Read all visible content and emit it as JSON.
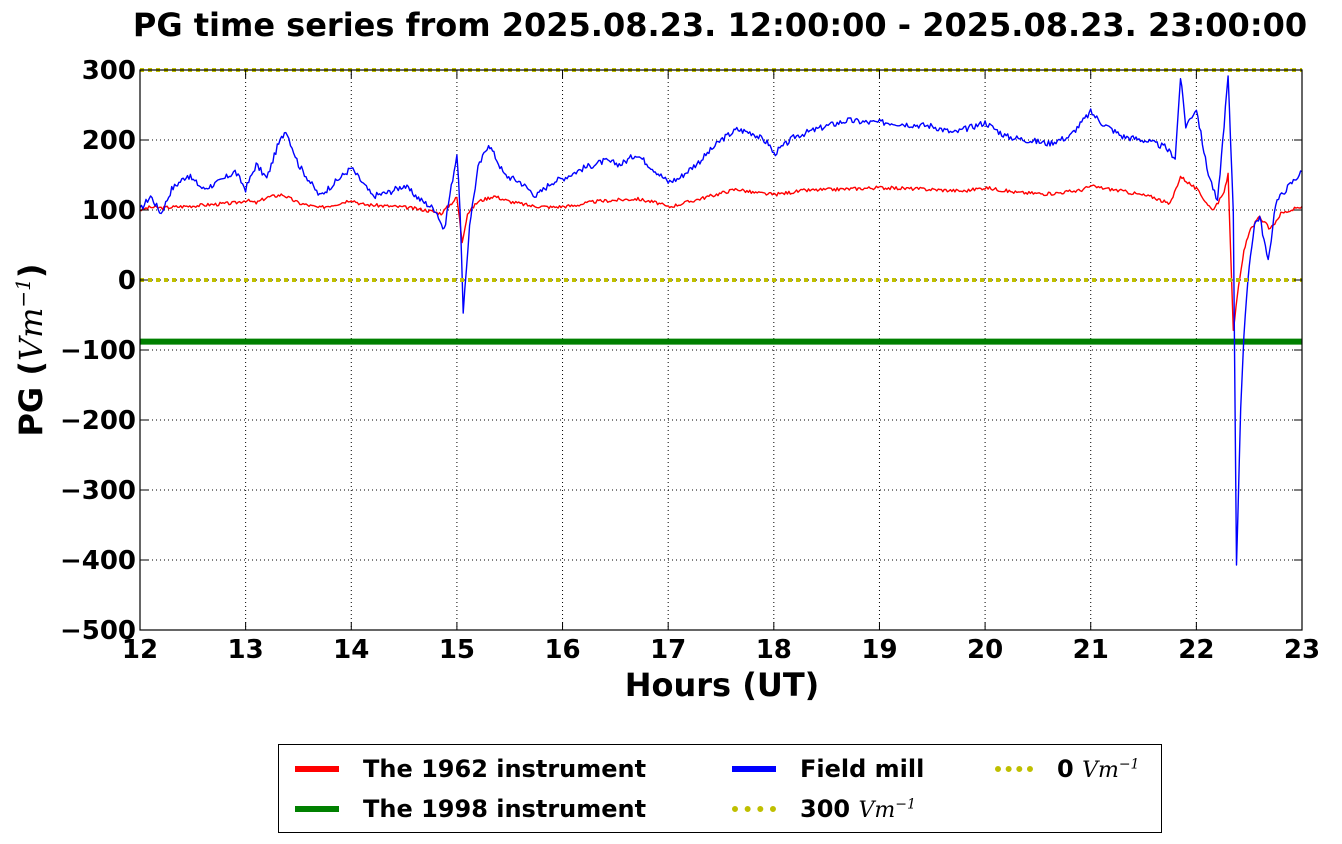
{
  "chart_data": {
    "type": "line",
    "title": "PG time series from 2025.08.23. 12:00:00 - 2025.08.23. 23:00:00",
    "xlabel": "Hours (UT)",
    "ylabel": "PG (Vm⁻¹)",
    "ylabel_text": "PG (",
    "ylabel_unit": "Vm",
    "ylabel_exp": "−1",
    "ylabel_close": ")",
    "xlim": [
      12,
      23
    ],
    "ylim": [
      -500,
      300
    ],
    "xticks": [
      12,
      13,
      14,
      15,
      16,
      17,
      18,
      19,
      20,
      21,
      22,
      23
    ],
    "yticks": [
      -500,
      -400,
      -300,
      -200,
      -100,
      0,
      100,
      200,
      300
    ],
    "grid": true,
    "legend_position": "bottom",
    "series": [
      {
        "name": "The 1962 instrument",
        "color": "#ff0000",
        "style": "solid",
        "x": [
          12.0,
          12.1,
          12.2,
          12.3,
          12.5,
          12.7,
          12.9,
          13.0,
          13.1,
          13.2,
          13.35,
          13.5,
          13.7,
          13.9,
          14.0,
          14.1,
          14.3,
          14.5,
          14.7,
          14.85,
          14.95,
          15.0,
          15.05,
          15.1,
          15.2,
          15.35,
          15.5,
          15.7,
          15.9,
          16.1,
          16.3,
          16.5,
          16.7,
          16.9,
          17.0,
          17.1,
          17.3,
          17.5,
          17.65,
          17.8,
          18.0,
          18.3,
          18.7,
          19.0,
          19.4,
          19.8,
          20.0,
          20.3,
          20.6,
          20.9,
          21.0,
          21.3,
          21.6,
          21.75,
          21.85,
          22.0,
          22.15,
          22.25,
          22.3,
          22.35,
          22.4,
          22.45,
          22.5,
          22.6,
          22.7,
          22.8,
          23.0
        ],
        "values": [
          100,
          104,
          103,
          104,
          106,
          108,
          110,
          114,
          110,
          118,
          122,
          110,
          103,
          110,
          115,
          108,
          106,
          104,
          100,
          95,
          110,
          118,
          55,
          95,
          112,
          120,
          112,
          106,
          104,
          106,
          112,
          114,
          116,
          110,
          104,
          108,
          116,
          124,
          130,
          125,
          122,
          128,
          130,
          132,
          130,
          127,
          132,
          125,
          123,
          128,
          134,
          127,
          118,
          108,
          148,
          130,
          100,
          120,
          150,
          -70,
          -10,
          40,
          70,
          90,
          72,
          95,
          105
        ]
      },
      {
        "name": "The 1998 instrument",
        "color": "#008000",
        "style": "solid",
        "x": [
          12,
          23
        ],
        "values": [
          -88,
          -88
        ]
      },
      {
        "name": "Field mill",
        "color": "#0000ff",
        "style": "solid",
        "x": [
          12.0,
          12.1,
          12.2,
          12.3,
          12.45,
          12.6,
          12.75,
          12.9,
          13.0,
          13.1,
          13.2,
          13.3,
          13.38,
          13.5,
          13.7,
          13.85,
          14.0,
          14.1,
          14.2,
          14.35,
          14.5,
          14.65,
          14.8,
          14.88,
          14.92,
          15.0,
          15.03,
          15.06,
          15.12,
          15.2,
          15.3,
          15.35,
          15.45,
          15.6,
          15.75,
          15.9,
          16.0,
          16.2,
          16.4,
          16.55,
          16.7,
          16.85,
          17.0,
          17.1,
          17.3,
          17.5,
          17.65,
          17.8,
          17.95,
          18.0,
          18.2,
          18.5,
          18.7,
          18.9,
          19.1,
          19.3,
          19.5,
          19.7,
          20.0,
          20.2,
          20.4,
          20.6,
          20.8,
          21.0,
          21.1,
          21.3,
          21.5,
          21.7,
          21.8,
          21.85,
          21.9,
          22.0,
          22.1,
          22.2,
          22.25,
          22.3,
          22.35,
          22.38,
          22.42,
          22.45,
          22.5,
          22.55,
          22.6,
          22.68,
          22.75,
          22.85,
          23.0
        ],
        "values": [
          100,
          120,
          95,
          130,
          150,
          130,
          140,
          155,
          130,
          165,
          145,
          190,
          215,
          165,
          120,
          140,
          160,
          140,
          120,
          125,
          135,
          115,
          100,
          70,
          110,
          180,
          100,
          -50,
          80,
          160,
          195,
          180,
          150,
          140,
          120,
          140,
          145,
          160,
          170,
          165,
          180,
          160,
          140,
          145,
          170,
          200,
          215,
          210,
          195,
          180,
          205,
          220,
          228,
          225,
          225,
          222,
          220,
          210,
          225,
          205,
          200,
          195,
          205,
          240,
          225,
          205,
          200,
          190,
          175,
          290,
          220,
          245,
          160,
          110,
          200,
          290,
          100,
          -410,
          -180,
          -80,
          20,
          80,
          90,
          25,
          110,
          130,
          155
        ]
      },
      {
        "name": "300 Vm⁻¹",
        "color": "#bfbf00",
        "style": "dotted",
        "x": [
          12,
          23
        ],
        "values": [
          300,
          300
        ]
      },
      {
        "name": "0 Vm⁻¹",
        "color": "#bfbf00",
        "style": "dotted",
        "x": [
          12,
          23
        ],
        "values": [
          0,
          0
        ]
      }
    ],
    "legend": [
      {
        "label": "The 1962 instrument",
        "color": "#ff0000",
        "style": "solid"
      },
      {
        "label": "The 1998 instrument",
        "color": "#008000",
        "style": "solid"
      },
      {
        "label": "Field mill",
        "color": "#0000ff",
        "style": "solid"
      },
      {
        "label": "300",
        "unit": "Vm",
        "exp": "−1",
        "color": "#bfbf00",
        "style": "dotted"
      },
      {
        "label": "0",
        "unit": "Vm",
        "exp": "−1",
        "color": "#bfbf00",
        "style": "dotted"
      }
    ]
  }
}
